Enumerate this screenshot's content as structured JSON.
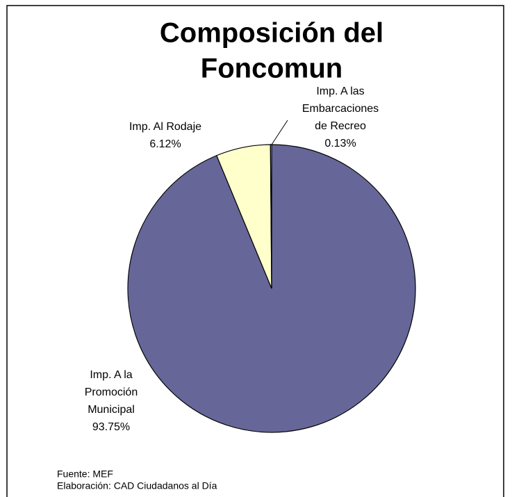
{
  "chart_data": {
    "type": "pie",
    "title": [
      "Composición del",
      "Foncomun"
    ],
    "categories": [
      [
        "Imp. A la",
        "Promoción",
        "Municipal"
      ],
      [
        "Imp. Al Rodaje"
      ],
      [
        "Imp. A las",
        "Embarcaciones",
        "de Recreo"
      ]
    ],
    "values": [
      93.75,
      6.12,
      0.13
    ],
    "value_labels": [
      "93.75%",
      "6.12%",
      "0.13%"
    ],
    "colors": [
      "#666699",
      "#ffffcc",
      "#ccffff"
    ],
    "footnotes": [
      "Fuente: MEF",
      "Elaboración: CAD Ciudadanos al Día"
    ]
  }
}
